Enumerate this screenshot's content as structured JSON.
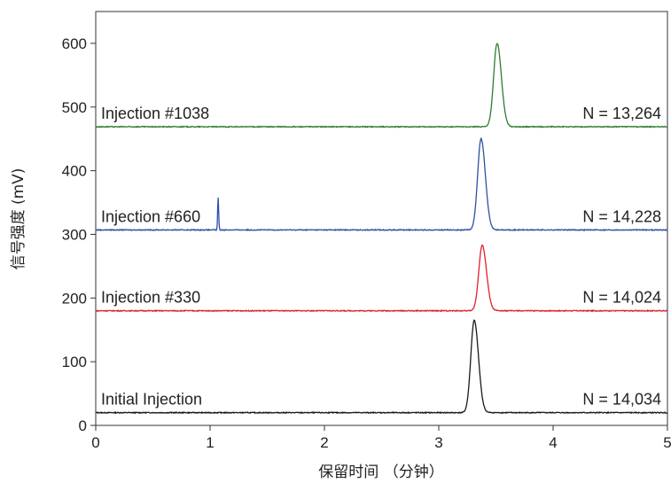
{
  "chart_data": {
    "type": "line",
    "xlabel": "保留时间 （分钟）",
    "ylabel": "信号强度 (mV)",
    "xlim": [
      0,
      5
    ],
    "ylim": [
      0,
      650
    ],
    "xticks": [
      "0",
      "1",
      "2",
      "3",
      "4",
      "5"
    ],
    "yticks": [
      "0",
      "100",
      "200",
      "300",
      "400",
      "500",
      "600"
    ],
    "grid": false,
    "series": [
      {
        "name": "Initial Injection",
        "color": "#1a1a1a",
        "baseline": 20,
        "peaks": [
          {
            "x": 3.31,
            "height": 165,
            "width": 0.03
          }
        ],
        "annotation": "N = 14,034"
      },
      {
        "name": "Injection #330",
        "color": "#e0202e",
        "baseline": 180,
        "peaks": [
          {
            "x": 3.38,
            "height": 283,
            "width": 0.03
          }
        ],
        "annotation": "N = 14,024"
      },
      {
        "name": "Injection #660",
        "color": "#2e4fa3",
        "baseline": 307,
        "peaks": [
          {
            "x": 1.07,
            "height": 358,
            "width": 0.004
          },
          {
            "x": 3.37,
            "height": 450,
            "width": 0.03
          }
        ],
        "annotation": "N = 14,228"
      },
      {
        "name": "Injection #1038",
        "color": "#2e7d32",
        "baseline": 469,
        "peaks": [
          {
            "x": 3.51,
            "height": 600,
            "width": 0.03
          }
        ],
        "annotation": "N = 13,264"
      }
    ]
  }
}
